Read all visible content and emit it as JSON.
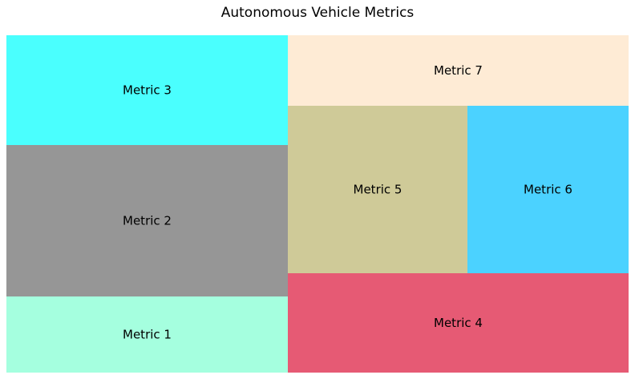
{
  "chart_data": {
    "type": "treemap",
    "title": "Autonomous Vehicle Metrics",
    "tiles": [
      {
        "label": "Metric 1",
        "color": "#a5ffdf"
      },
      {
        "label": "Metric 2",
        "color": "#969696"
      },
      {
        "label": "Metric 3",
        "color": "#4afffe"
      },
      {
        "label": "Metric 4",
        "color": "#e65a74"
      },
      {
        "label": "Metric 5",
        "color": "#cfca98"
      },
      {
        "label": "Metric 6",
        "color": "#4bd2ff"
      },
      {
        "label": "Metric 7",
        "color": "#feebd5"
      }
    ]
  }
}
